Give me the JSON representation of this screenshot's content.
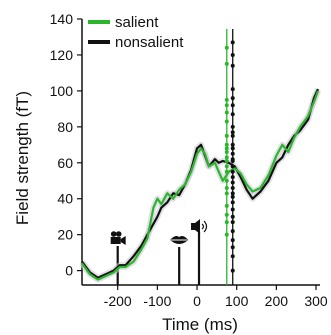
{
  "chart_data": {
    "type": "line",
    "xlabel": "Time (ms)",
    "ylabel": "Field strength (fT)",
    "xlim": [
      -290,
      310
    ],
    "ylim": [
      -8,
      140
    ],
    "x_ticks": [
      -200,
      -100,
      0,
      100,
      200,
      300
    ],
    "x_tick_labels": [
      "-200",
      "-100",
      "0",
      "100",
      "200",
      "300"
    ],
    "y_ticks": [
      0,
      20,
      40,
      60,
      80,
      100,
      120,
      140
    ],
    "y_tick_labels": [
      "0",
      "20",
      "40",
      "60",
      "80",
      "100",
      "120",
      "140"
    ],
    "legend_position": "top-left",
    "grid": false,
    "series": [
      {
        "name": "salient",
        "color": "#2db52d",
        "x": [
          -290,
          -270,
          -250,
          -230,
          -210,
          -195,
          -180,
          -160,
          -140,
          -125,
          -110,
          -100,
          -90,
          -75,
          -60,
          -45,
          -30,
          -15,
          0,
          10,
          20,
          30,
          45,
          55,
          65,
          80,
          95,
          110,
          125,
          140,
          160,
          180,
          200,
          215,
          230,
          245,
          260,
          280,
          295,
          305
        ],
        "y": [
          4,
          -2,
          -5,
          -3,
          -1,
          2,
          2,
          5,
          12,
          18,
          35,
          40,
          37,
          43,
          40,
          45,
          48,
          55,
          65,
          68,
          65,
          58,
          60,
          55,
          50,
          55,
          57,
          54,
          48,
          44,
          46,
          53,
          64,
          70,
          66,
          74,
          80,
          86,
          94,
          100
        ]
      },
      {
        "name": "nonsalient",
        "color": "#111111",
        "x": [
          -290,
          -270,
          -250,
          -230,
          -210,
          -195,
          -180,
          -160,
          -140,
          -125,
          -110,
          -100,
          -90,
          -75,
          -60,
          -45,
          -30,
          -15,
          0,
          10,
          20,
          30,
          45,
          55,
          65,
          80,
          95,
          110,
          125,
          140,
          160,
          180,
          200,
          215,
          230,
          245,
          260,
          280,
          295,
          305
        ],
        "y": [
          5,
          -1,
          -4,
          -2,
          0,
          3,
          3,
          8,
          14,
          20,
          26,
          30,
          35,
          38,
          43,
          42,
          48,
          56,
          68,
          70,
          64,
          58,
          62,
          60,
          61,
          60,
          58,
          52,
          45,
          40,
          44,
          50,
          60,
          63,
          70,
          75,
          78,
          84,
          96,
          101
        ]
      }
    ],
    "markers": [
      {
        "name": "video-onset-marker",
        "icon": "video-camera-icon",
        "x": -200
      },
      {
        "name": "lips-marker",
        "icon": "lips-icon",
        "x": -45
      },
      {
        "name": "audio-onset-marker",
        "icon": "speaker-icon",
        "x": 5
      }
    ],
    "vertical_lines": [
      {
        "name": "salient-vline",
        "series": "salient",
        "x": 75,
        "color": "#2db52d"
      },
      {
        "name": "nonsalient-vline",
        "series": "nonsalient",
        "x": 90,
        "color": "#111111"
      }
    ],
    "dot_columns": [
      {
        "name": "salient-dots",
        "x": 75,
        "color": "#2db52d",
        "y": [
          20,
          27,
          31,
          36,
          43,
          46,
          50,
          55,
          58,
          61,
          63,
          66,
          68,
          70,
          75,
          83,
          88,
          92,
          95,
          115,
          124
        ]
      },
      {
        "name": "nonsalient-dots",
        "x": 90,
        "color": "#111111",
        "y": [
          0,
          8,
          13,
          17,
          22,
          27,
          30,
          34,
          38,
          41,
          43,
          46,
          49,
          52,
          55,
          58,
          61,
          62,
          65,
          68,
          70,
          75,
          77,
          80,
          87,
          92,
          96,
          101,
          114,
          120,
          127
        ]
      }
    ]
  }
}
